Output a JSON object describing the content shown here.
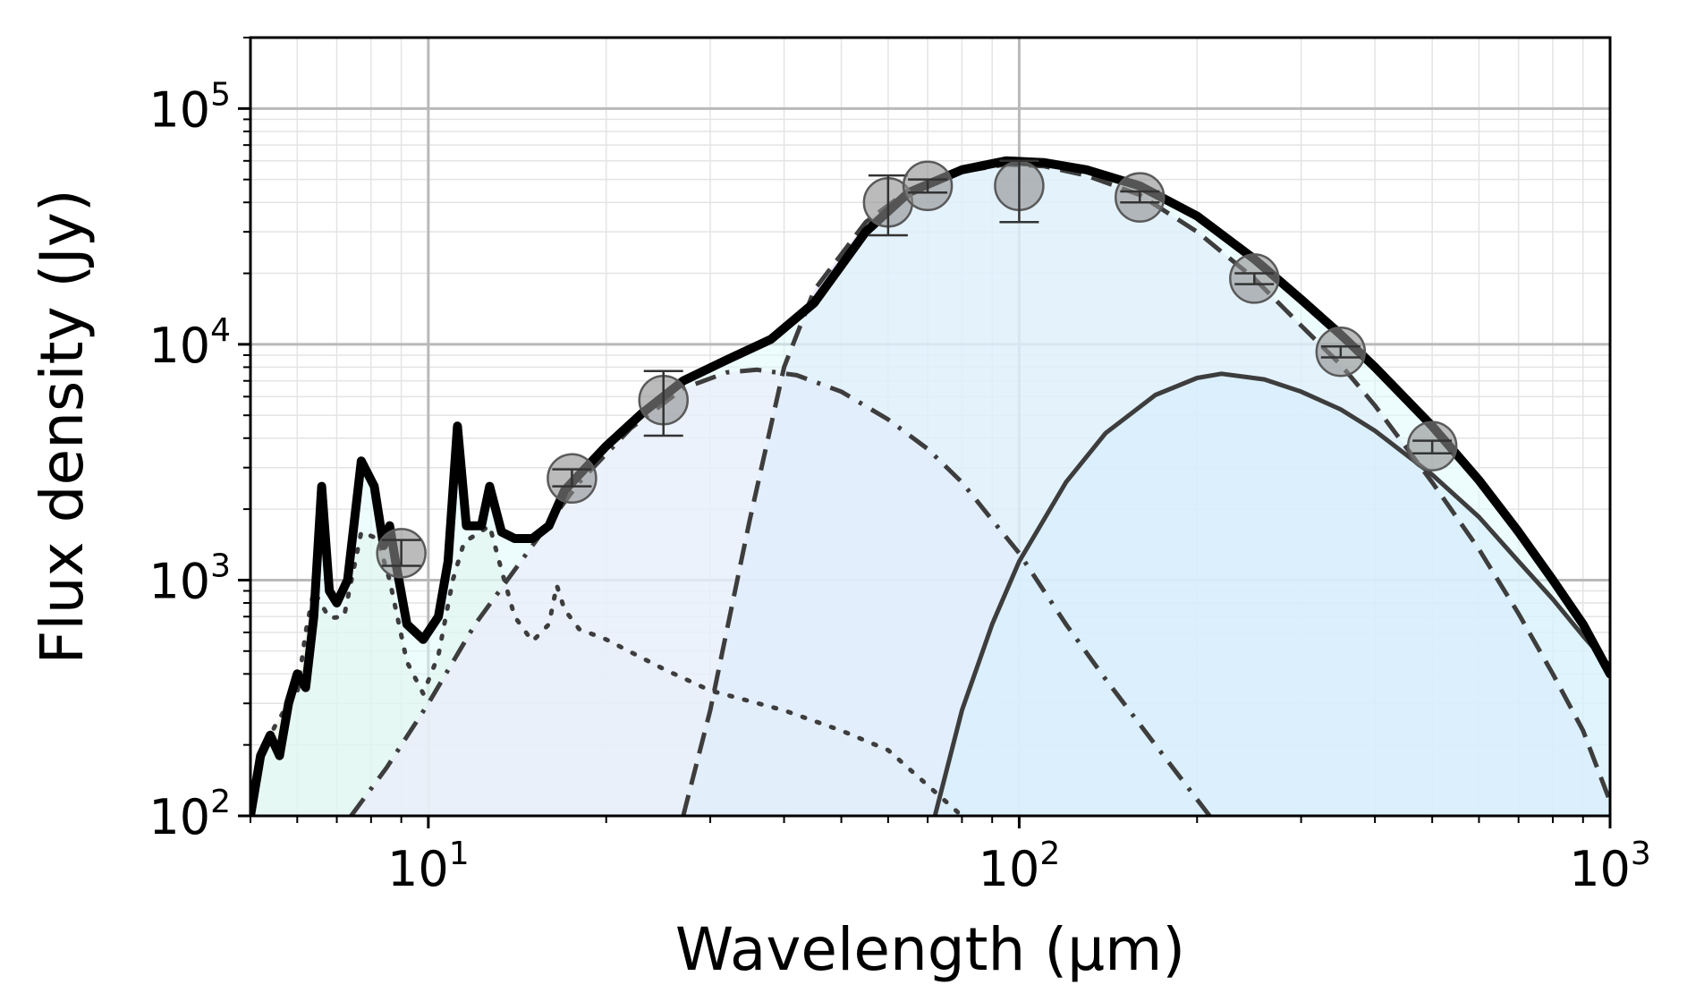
{
  "chart_data": {
    "type": "line",
    "xlabel": "Wavelength (μm)",
    "ylabel": "Flux density (Jy)",
    "xscale": "log",
    "yscale": "log",
    "xlim": [
      5,
      1000
    ],
    "ylim": [
      100,
      200000
    ],
    "grid": true,
    "legend": "none",
    "x_ticks": [
      {
        "base": "10",
        "exp": "1",
        "value": 10
      },
      {
        "base": "10",
        "exp": "2",
        "value": 100
      },
      {
        "base": "10",
        "exp": "3",
        "value": 1000
      }
    ],
    "y_ticks": [
      {
        "base": "10",
        "exp": "2",
        "value": 100
      },
      {
        "base": "10",
        "exp": "3",
        "value": 1000
      },
      {
        "base": "10",
        "exp": "4",
        "value": 10000
      },
      {
        "base": "10",
        "exp": "5",
        "value": 100000
      }
    ],
    "observations": [
      {
        "x": 9.0,
        "y": 1300,
        "err_low": 1150,
        "err_high": 1480
      },
      {
        "x": 17.5,
        "y": 2700,
        "err_low": 2500,
        "err_high": 2950
      },
      {
        "x": 25.0,
        "y": 5800,
        "err_low": 4100,
        "err_high": 7700
      },
      {
        "x": 60.0,
        "y": 40000,
        "err_low": 29000,
        "err_high": 52000
      },
      {
        "x": 70.0,
        "y": 47000,
        "err_low": 44000,
        "err_high": 50000
      },
      {
        "x": 100.0,
        "y": 47000,
        "err_low": 33000,
        "err_high": 60000
      },
      {
        "x": 160.0,
        "y": 42000,
        "err_low": 40000,
        "err_high": 44500
      },
      {
        "x": 250.0,
        "y": 19000,
        "err_low": 18000,
        "err_high": 20000
      },
      {
        "x": 350.0,
        "y": 9300,
        "err_low": 8800,
        "err_high": 9800
      },
      {
        "x": 500.0,
        "y": 3700,
        "err_low": 3450,
        "err_high": 3900
      }
    ],
    "components": [
      {
        "style": "dotted",
        "fill": "#e3efdc",
        "points": [
          [
            5.0,
            100
          ],
          [
            5.2,
            180
          ],
          [
            5.5,
            240
          ],
          [
            5.8,
            300
          ],
          [
            6.0,
            330
          ],
          [
            6.2,
            600
          ],
          [
            6.4,
            900
          ],
          [
            6.8,
            690
          ],
          [
            7.2,
            700
          ],
          [
            7.7,
            1600
          ],
          [
            8.2,
            1500
          ],
          [
            8.6,
            1000
          ],
          [
            9.2,
            450
          ],
          [
            9.8,
            330
          ],
          [
            10.4,
            480
          ],
          [
            11.0,
            1000
          ],
          [
            11.5,
            1450
          ],
          [
            12.0,
            1550
          ],
          [
            12.7,
            1700
          ],
          [
            13.3,
            1100
          ],
          [
            14.0,
            700
          ],
          [
            15.0,
            550
          ],
          [
            16.0,
            650
          ],
          [
            16.5,
            950
          ],
          [
            17.0,
            750
          ],
          [
            18.0,
            620
          ],
          [
            20.0,
            560
          ],
          [
            25.0,
            420
          ],
          [
            30.0,
            340
          ],
          [
            40.0,
            280
          ],
          [
            50.0,
            230
          ],
          [
            60.0,
            190
          ],
          [
            80.0,
            100
          ]
        ]
      },
      {
        "style": "dashdot",
        "fill": "#fcdcfb",
        "points": [
          [
            7.4,
            100
          ],
          [
            8.5,
            160
          ],
          [
            10.0,
            300
          ],
          [
            12.0,
            650
          ],
          [
            15.0,
            1400
          ],
          [
            18.0,
            2600
          ],
          [
            22.0,
            4400
          ],
          [
            27.0,
            6500
          ],
          [
            32.0,
            7600
          ],
          [
            36.0,
            7800
          ],
          [
            42.0,
            7400
          ],
          [
            50.0,
            6300
          ],
          [
            60.0,
            4800
          ],
          [
            70.0,
            3600
          ],
          [
            80.0,
            2600
          ],
          [
            90.0,
            1800
          ],
          [
            100.0,
            1300
          ],
          [
            120.0,
            650
          ],
          [
            140.0,
            380
          ],
          [
            170.0,
            200
          ],
          [
            210.0,
            100
          ]
        ]
      },
      {
        "style": "dashed",
        "fill": "#dddcfc",
        "points": [
          [
            27.0,
            100
          ],
          [
            30.0,
            280
          ],
          [
            35.0,
            1800
          ],
          [
            40.0,
            8000
          ],
          [
            45.0,
            17000
          ],
          [
            55.0,
            33000
          ],
          [
            65.0,
            45000
          ],
          [
            80.0,
            54000
          ],
          [
            95.0,
            58000
          ],
          [
            110.0,
            57000
          ],
          [
            130.0,
            52000
          ],
          [
            160.0,
            43000
          ],
          [
            200.0,
            30000
          ],
          [
            250.0,
            19000
          ],
          [
            300.0,
            12000
          ],
          [
            350.0,
            8200
          ],
          [
            400.0,
            5500
          ],
          [
            500.0,
            2600
          ],
          [
            600.0,
            1350
          ],
          [
            700.0,
            720
          ],
          [
            800.0,
            400
          ],
          [
            900.0,
            230
          ],
          [
            1000.0,
            115
          ]
        ]
      },
      {
        "style": "solid-thin",
        "fill": "#cbe2fc",
        "points": [
          [
            72.0,
            100
          ],
          [
            80.0,
            280
          ],
          [
            90.0,
            650
          ],
          [
            100.0,
            1200
          ],
          [
            120.0,
            2600
          ],
          [
            140.0,
            4200
          ],
          [
            170.0,
            6100
          ],
          [
            200.0,
            7200
          ],
          [
            220.0,
            7500
          ],
          [
            260.0,
            7100
          ],
          [
            300.0,
            6300
          ],
          [
            350.0,
            5300
          ],
          [
            400.0,
            4300
          ],
          [
            500.0,
            2800
          ],
          [
            600.0,
            1850
          ],
          [
            700.0,
            1200
          ],
          [
            800.0,
            830
          ],
          [
            900.0,
            580
          ],
          [
            1000.0,
            430
          ]
        ]
      },
      {
        "style": "total",
        "fill": "#dff9fb",
        "points": [
          [
            5.0,
            100
          ],
          [
            5.2,
            180
          ],
          [
            5.4,
            220
          ],
          [
            5.6,
            180
          ],
          [
            5.8,
            300
          ],
          [
            6.0,
            400
          ],
          [
            6.2,
            350
          ],
          [
            6.4,
            700
          ],
          [
            6.6,
            2500
          ],
          [
            6.8,
            900
          ],
          [
            7.0,
            800
          ],
          [
            7.3,
            1000
          ],
          [
            7.7,
            3200
          ],
          [
            8.1,
            2500
          ],
          [
            8.4,
            1400
          ],
          [
            8.6,
            1700
          ],
          [
            8.8,
            1200
          ],
          [
            9.2,
            650
          ],
          [
            9.8,
            560
          ],
          [
            10.4,
            700
          ],
          [
            10.8,
            1200
          ],
          [
            11.2,
            4500
          ],
          [
            11.6,
            1700
          ],
          [
            12.3,
            1700
          ],
          [
            12.7,
            2500
          ],
          [
            13.3,
            1600
          ],
          [
            14.0,
            1500
          ],
          [
            15.0,
            1500
          ],
          [
            16.0,
            1700
          ],
          [
            17.0,
            2400
          ],
          [
            18.0,
            2800
          ],
          [
            20.0,
            3700
          ],
          [
            23.0,
            5100
          ],
          [
            27.0,
            7000
          ],
          [
            32.0,
            8600
          ],
          [
            38.0,
            10500
          ],
          [
            45.0,
            15000
          ],
          [
            55.0,
            30000
          ],
          [
            65.0,
            44000
          ],
          [
            80.0,
            55000
          ],
          [
            95.0,
            60000
          ],
          [
            110.0,
            59000
          ],
          [
            130.0,
            55000
          ],
          [
            160.0,
            47000
          ],
          [
            200.0,
            35000
          ],
          [
            250.0,
            23000
          ],
          [
            300.0,
            15500
          ],
          [
            350.0,
            11000
          ],
          [
            400.0,
            8000
          ],
          [
            500.0,
            4500
          ],
          [
            600.0,
            2650
          ],
          [
            700.0,
            1600
          ],
          [
            800.0,
            1000
          ],
          [
            900.0,
            650
          ],
          [
            1000.0,
            400
          ]
        ]
      }
    ]
  }
}
